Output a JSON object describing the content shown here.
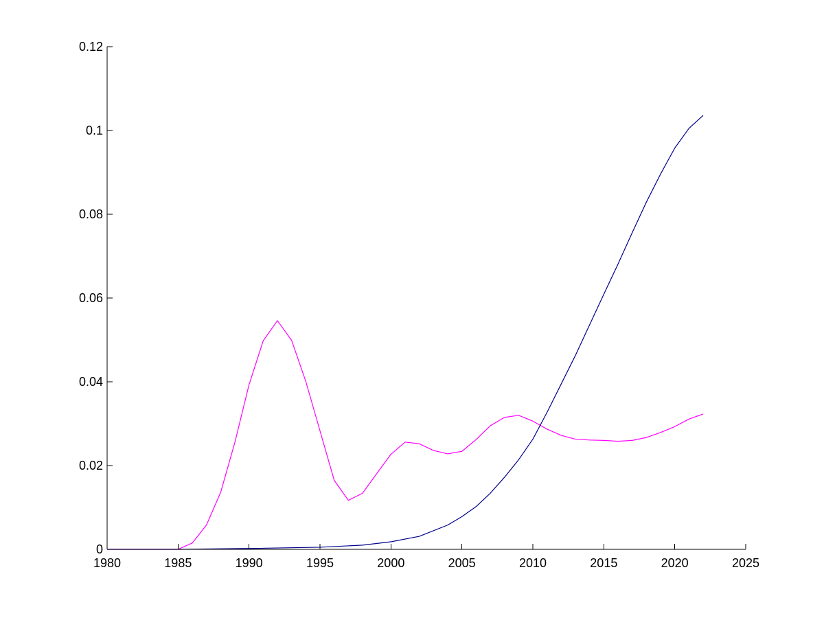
{
  "chart_data": {
    "type": "line",
    "title": "",
    "xlabel": "",
    "ylabel": "",
    "xlim": [
      1980,
      2025
    ],
    "ylim": [
      0,
      0.12
    ],
    "xticks": [
      1980,
      1985,
      1990,
      1995,
      2000,
      2005,
      2010,
      2015,
      2020,
      2025
    ],
    "xtick_labels": [
      "1980",
      "1985",
      "1990",
      "1995",
      "2000",
      "2005",
      "2010",
      "2015",
      "2020",
      "2025"
    ],
    "yticks": [
      0,
      0.02,
      0.04,
      0.06,
      0.08,
      0.1,
      0.12
    ],
    "ytick_labels": [
      "0",
      "0.02",
      "0.04",
      "0.06",
      "0.08",
      "0.1",
      "0.12"
    ],
    "grid": false,
    "legend": "none",
    "series": [
      {
        "color": "#ff00ff",
        "x": [
          1980,
          1981,
          1982,
          1983,
          1984,
          1985,
          1986,
          1987,
          1988,
          1989,
          1990,
          1991,
          1992,
          1993,
          1994,
          1995,
          1996,
          1997,
          1998,
          1999,
          2000,
          2001,
          2002,
          2003,
          2004,
          2005,
          2006,
          2007,
          2008,
          2009,
          2010,
          2011,
          2012,
          2013,
          2014,
          2015,
          2016,
          2017,
          2018,
          2019,
          2020,
          2021,
          2022
        ],
        "y": [
          0,
          0,
          0,
          0,
          0,
          0,
          0.0015,
          0.0058,
          0.0136,
          0.0255,
          0.0393,
          0.0498,
          0.0546,
          0.0499,
          0.0401,
          0.0283,
          0.0165,
          0.0117,
          0.0134,
          0.0181,
          0.0227,
          0.0256,
          0.0252,
          0.0236,
          0.0228,
          0.0234,
          0.0262,
          0.0295,
          0.0315,
          0.032,
          0.0306,
          0.0287,
          0.0272,
          0.0263,
          0.0261,
          0.026,
          0.0258,
          0.026,
          0.0267,
          0.0279,
          0.0293,
          0.0311,
          0.0323
        ]
      },
      {
        "color": "#00008b",
        "x": [
          1980,
          1985,
          1990,
          1995,
          1998,
          2000,
          2002,
          2004,
          2005,
          2006,
          2007,
          2008,
          2009,
          2010,
          2011,
          2012,
          2013,
          2014,
          2015,
          2016,
          2017,
          2018,
          2019,
          2020,
          2021,
          2022
        ],
        "y": [
          0,
          0,
          0.0002,
          0.0005,
          0.001,
          0.0018,
          0.0031,
          0.0058,
          0.0078,
          0.0102,
          0.0134,
          0.0172,
          0.0214,
          0.0263,
          0.0327,
          0.0395,
          0.0463,
          0.0536,
          0.0609,
          0.0681,
          0.0756,
          0.0829,
          0.0896,
          0.0958,
          0.1005,
          0.1036
        ]
      }
    ]
  }
}
